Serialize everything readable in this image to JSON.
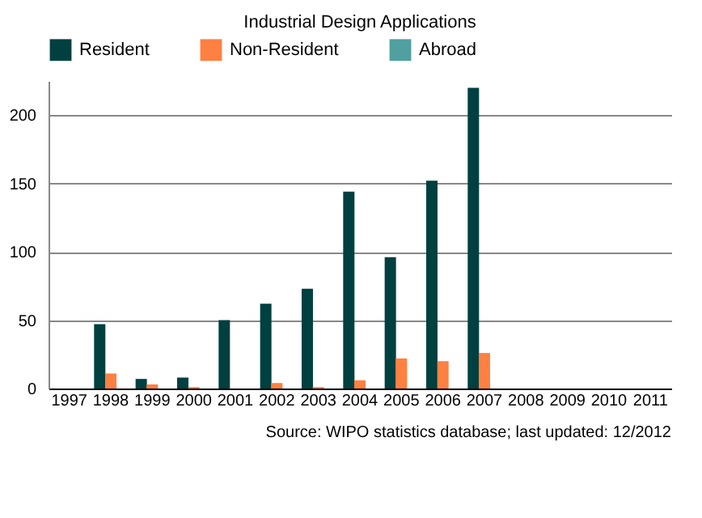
{
  "chart_data": {
    "type": "bar",
    "title": "Industrial Design Applications",
    "categories": [
      "1997",
      "1998",
      "1999",
      "2000",
      "2001",
      "2002",
      "2003",
      "2004",
      "2005",
      "2006",
      "2007",
      "2008",
      "2009",
      "2010",
      "2011"
    ],
    "series": [
      {
        "name": "Resident",
        "color": "#004040",
        "values": [
          null,
          47,
          7,
          8,
          50,
          62,
          73,
          144,
          96,
          152,
          220,
          null,
          null,
          null,
          null
        ]
      },
      {
        "name": "Non-Resident",
        "color": "#ff8040",
        "values": [
          null,
          11,
          3,
          1,
          null,
          4,
          1,
          6,
          22,
          20,
          26,
          null,
          null,
          null,
          null
        ]
      },
      {
        "name": "Abroad",
        "color": "#50a0a0",
        "values": [
          null,
          null,
          null,
          null,
          null,
          null,
          null,
          null,
          null,
          null,
          null,
          null,
          null,
          null,
          null
        ]
      }
    ],
    "ylim": [
      0,
      225
    ],
    "yticks": [
      0,
      50,
      100,
      150,
      200
    ],
    "grid": "y",
    "legend": "top",
    "annotations": [
      "Source: WIPO statistics database; last updated: 12/2012"
    ]
  }
}
